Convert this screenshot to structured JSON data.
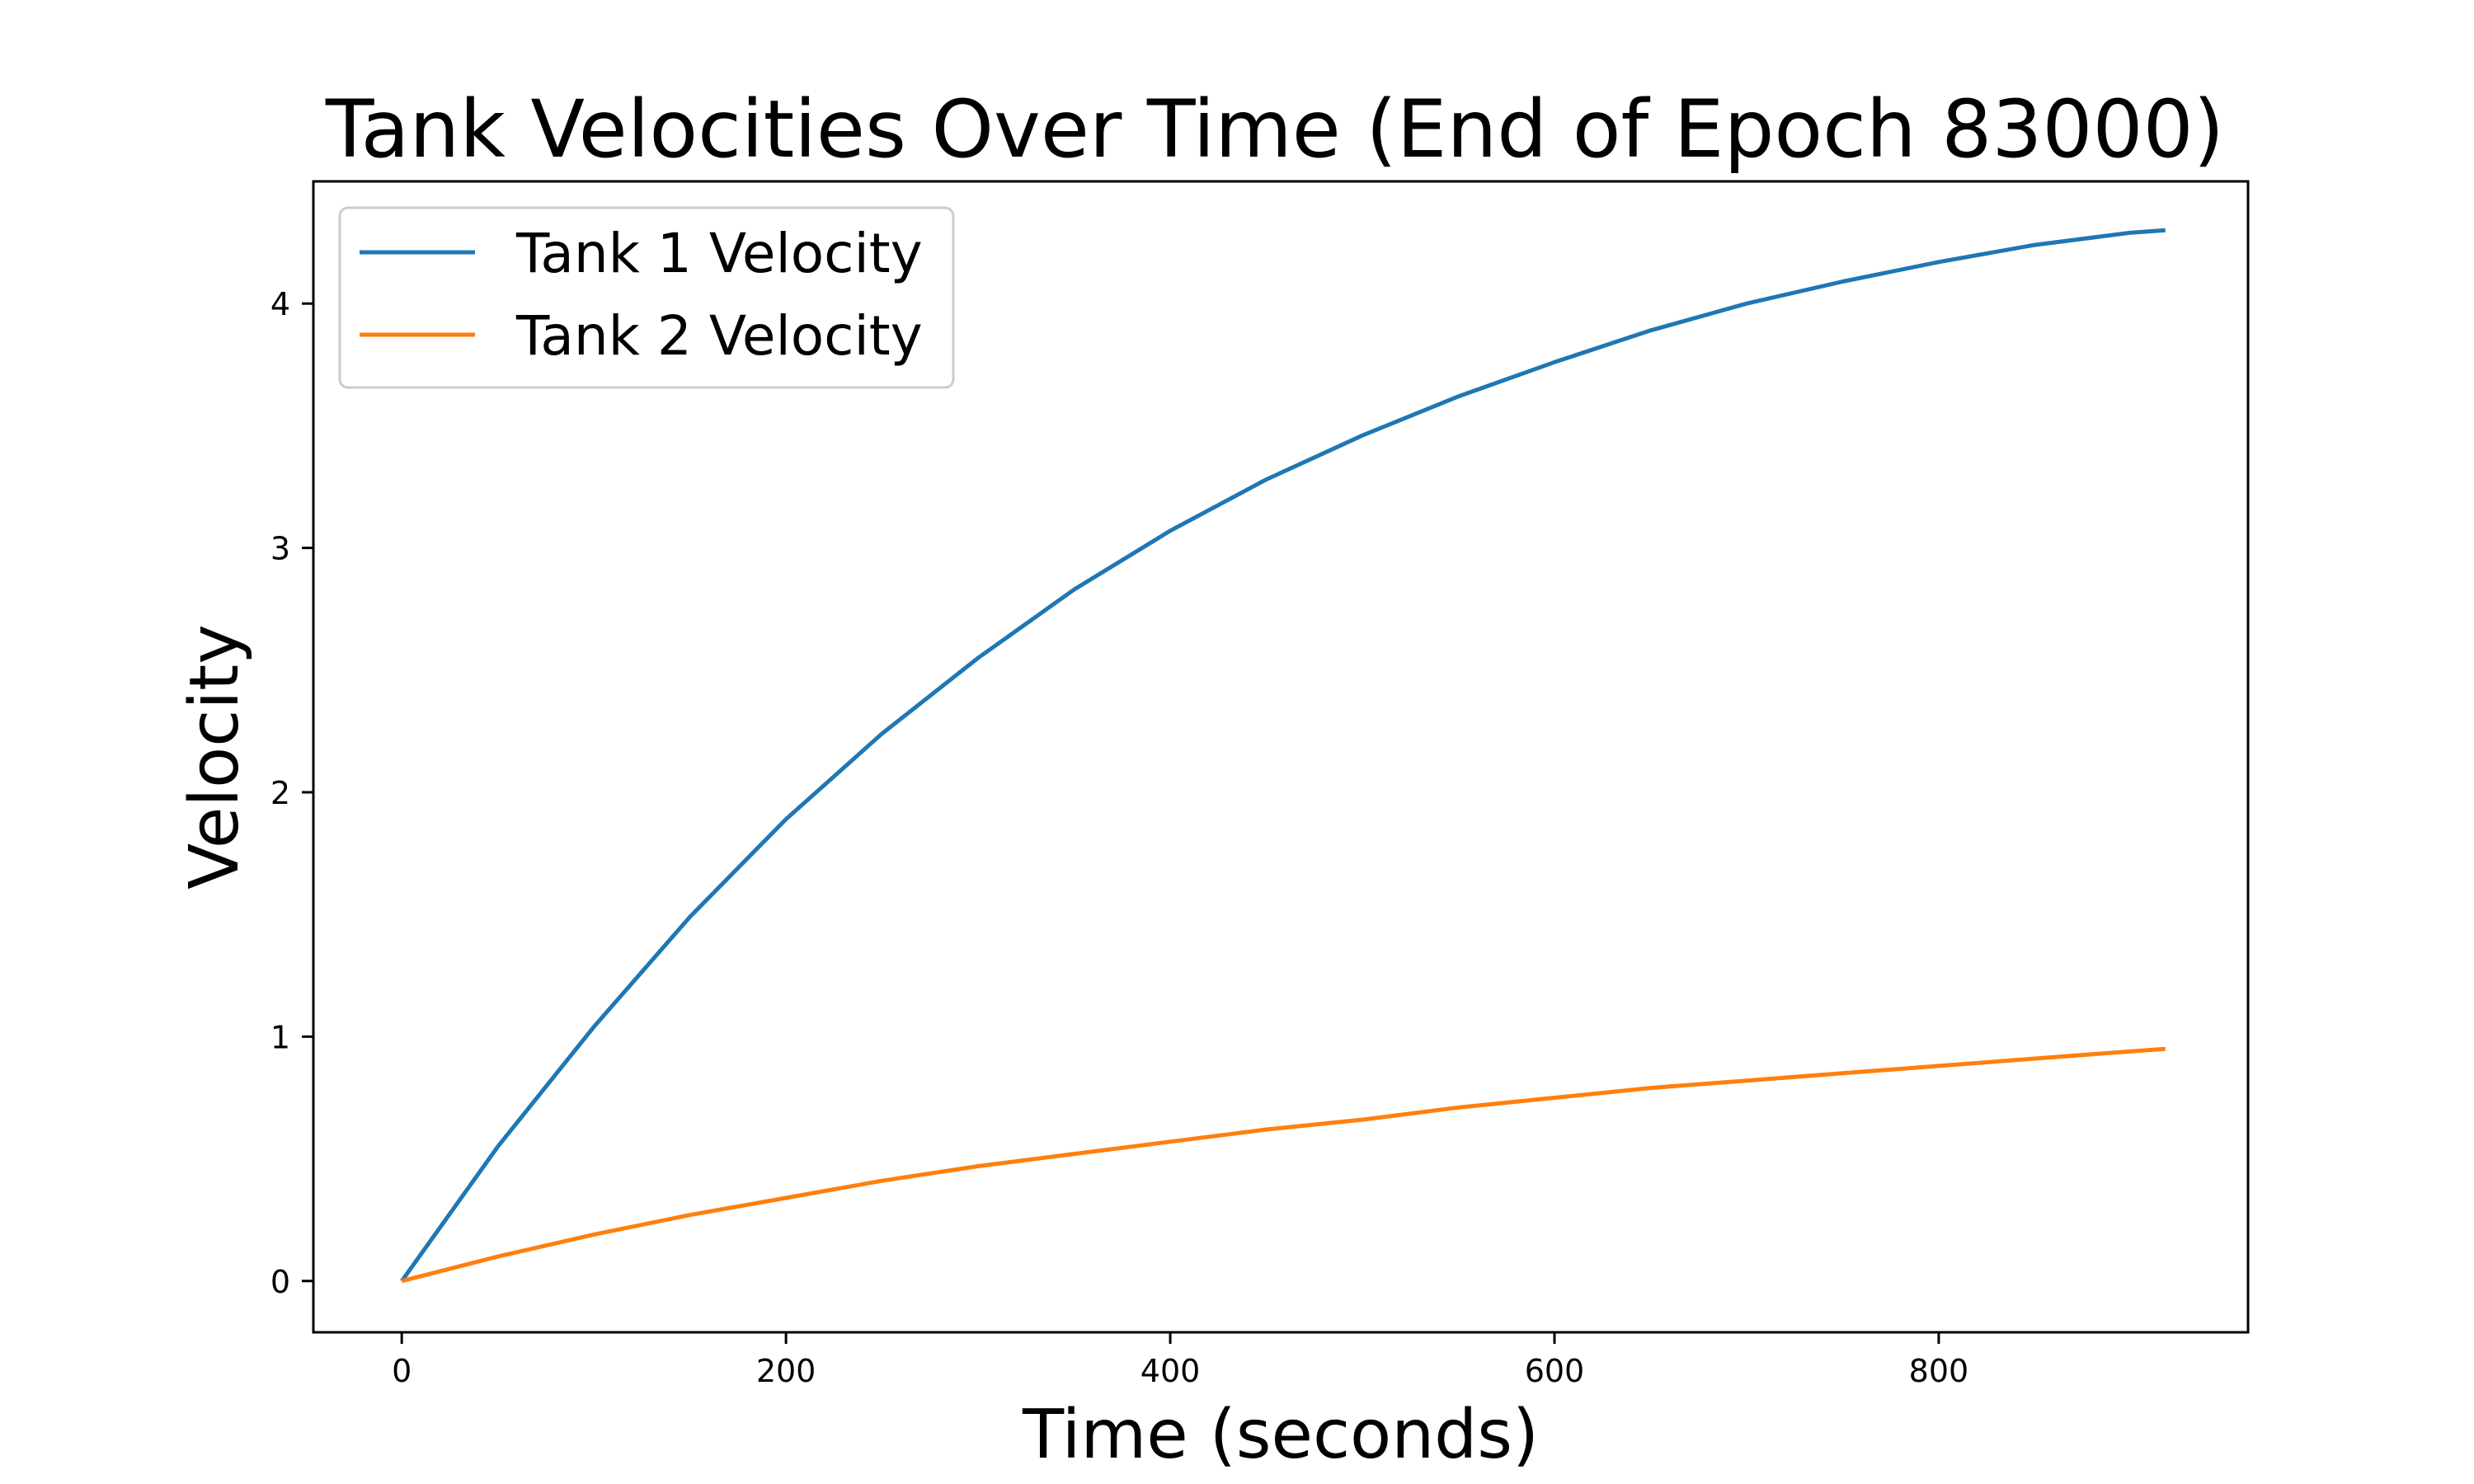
{
  "chart_data": {
    "type": "line",
    "title": "Tank Velocities Over Time (End of Epoch 83000)",
    "xlabel": "Time (seconds)",
    "ylabel": "Velocity",
    "xlim": [
      -46,
      961
    ],
    "ylim": [
      -0.21,
      4.5
    ],
    "xticks": [
      0,
      200,
      400,
      600,
      800
    ],
    "yticks": [
      0,
      1,
      2,
      3,
      4
    ],
    "grid": false,
    "legend_position": "top-left",
    "series": [
      {
        "name": "Tank 1 Velocity",
        "color": "#1f77b4",
        "x": [
          0,
          50,
          100,
          150,
          200,
          250,
          300,
          350,
          400,
          450,
          500,
          550,
          600,
          650,
          700,
          750,
          800,
          850,
          900,
          918
        ],
        "y": [
          0,
          0.55,
          1.04,
          1.49,
          1.89,
          2.24,
          2.55,
          2.83,
          3.07,
          3.28,
          3.46,
          3.62,
          3.76,
          3.89,
          4.0,
          4.09,
          4.17,
          4.24,
          4.29,
          4.3
        ]
      },
      {
        "name": "Tank 2 Velocity",
        "color": "#ff7f0e",
        "x": [
          0,
          50,
          100,
          150,
          200,
          250,
          300,
          350,
          400,
          450,
          500,
          550,
          600,
          650,
          700,
          750,
          800,
          850,
          900,
          918
        ],
        "y": [
          0,
          0.1,
          0.19,
          0.27,
          0.34,
          0.41,
          0.47,
          0.52,
          0.57,
          0.62,
          0.66,
          0.71,
          0.75,
          0.79,
          0.82,
          0.85,
          0.88,
          0.91,
          0.94,
          0.95
        ]
      }
    ]
  }
}
